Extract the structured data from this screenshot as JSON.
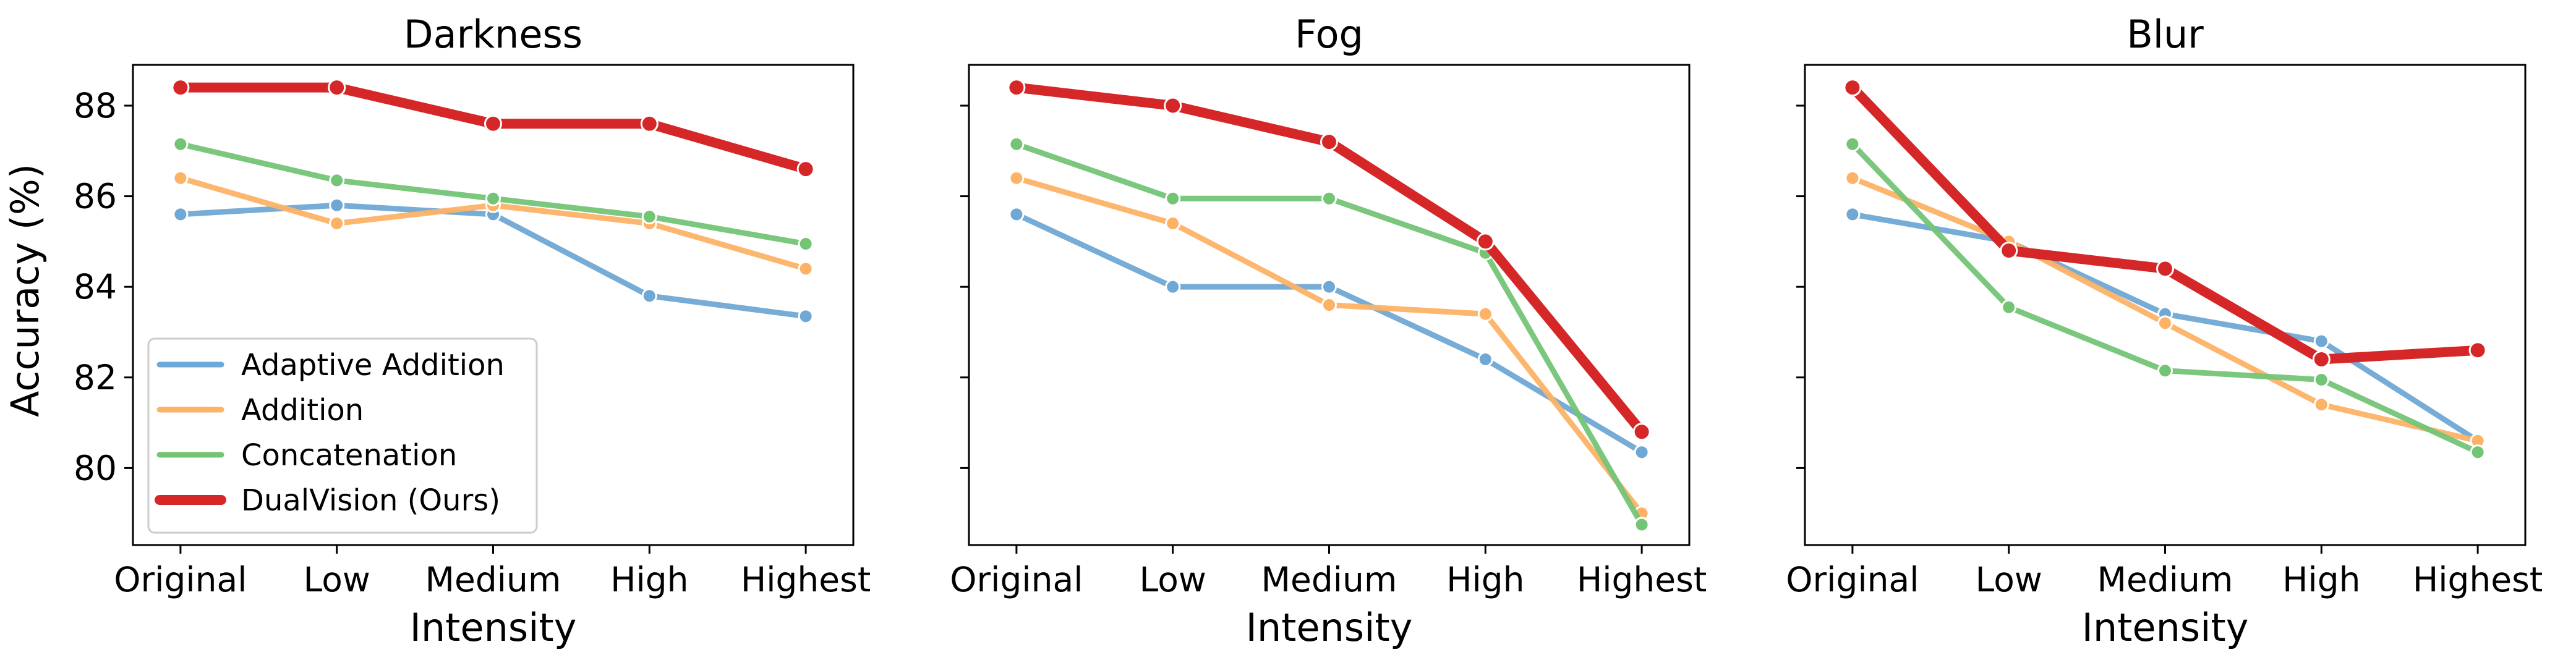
{
  "figure": {
    "ylabel": "Accuracy (%)",
    "legend_location": "lower-left of first panel"
  },
  "chart_data": [
    {
      "type": "line",
      "title": "Darkness",
      "xlabel": "Intensity",
      "ylabel": "Accuracy (%)",
      "categories": [
        "Original",
        "Low",
        "Medium",
        "High",
        "Highest"
      ],
      "ylim": [
        78.3,
        88.9
      ],
      "yticks": [
        80,
        82,
        84,
        86,
        88
      ],
      "series": [
        {
          "name": "Adaptive Addition",
          "color": "#6fa8d4",
          "values": [
            85.6,
            85.8,
            85.6,
            83.8,
            83.35
          ]
        },
        {
          "name": "Addition",
          "color": "#fdb266",
          "values": [
            86.4,
            85.4,
            85.8,
            85.4,
            84.4
          ]
        },
        {
          "name": "Concatenation",
          "color": "#74c476",
          "values": [
            87.15,
            86.35,
            85.95,
            85.55,
            84.95
          ]
        },
        {
          "name": "DualVision (Ours)",
          "color": "#d62728",
          "values": [
            88.4,
            88.4,
            87.6,
            87.6,
            86.6
          ]
        }
      ]
    },
    {
      "type": "line",
      "title": "Fog",
      "xlabel": "Intensity",
      "ylabel": "",
      "categories": [
        "Original",
        "Low",
        "Medium",
        "High",
        "Highest"
      ],
      "ylim": [
        78.3,
        88.9
      ],
      "yticks": [
        80,
        82,
        84,
        86,
        88
      ],
      "series": [
        {
          "name": "Adaptive Addition",
          "color": "#6fa8d4",
          "values": [
            85.6,
            84.0,
            84.0,
            82.4,
            80.35
          ]
        },
        {
          "name": "Addition",
          "color": "#fdb266",
          "values": [
            86.4,
            85.4,
            83.6,
            83.4,
            79.0
          ]
        },
        {
          "name": "Concatenation",
          "color": "#74c476",
          "values": [
            87.15,
            85.95,
            85.95,
            84.75,
            78.75
          ]
        },
        {
          "name": "DualVision (Ours)",
          "color": "#d62728",
          "values": [
            88.4,
            88.0,
            87.2,
            85.0,
            80.8
          ]
        }
      ]
    },
    {
      "type": "line",
      "title": "Blur",
      "xlabel": "Intensity",
      "ylabel": "",
      "categories": [
        "Original",
        "Low",
        "Medium",
        "High",
        "Highest"
      ],
      "ylim": [
        78.3,
        88.9
      ],
      "yticks": [
        80,
        82,
        84,
        86,
        88
      ],
      "series": [
        {
          "name": "Adaptive Addition",
          "color": "#6fa8d4",
          "values": [
            85.6,
            85.0,
            83.4,
            82.8,
            80.6
          ]
        },
        {
          "name": "Addition",
          "color": "#fdb266",
          "values": [
            86.4,
            85.0,
            83.2,
            81.4,
            80.6
          ]
        },
        {
          "name": "Concatenation",
          "color": "#74c476",
          "values": [
            87.15,
            83.55,
            82.15,
            81.95,
            80.35
          ]
        },
        {
          "name": "DualVision (Ours)",
          "color": "#d62728",
          "values": [
            88.4,
            84.8,
            84.4,
            82.4,
            82.6
          ]
        }
      ]
    }
  ]
}
